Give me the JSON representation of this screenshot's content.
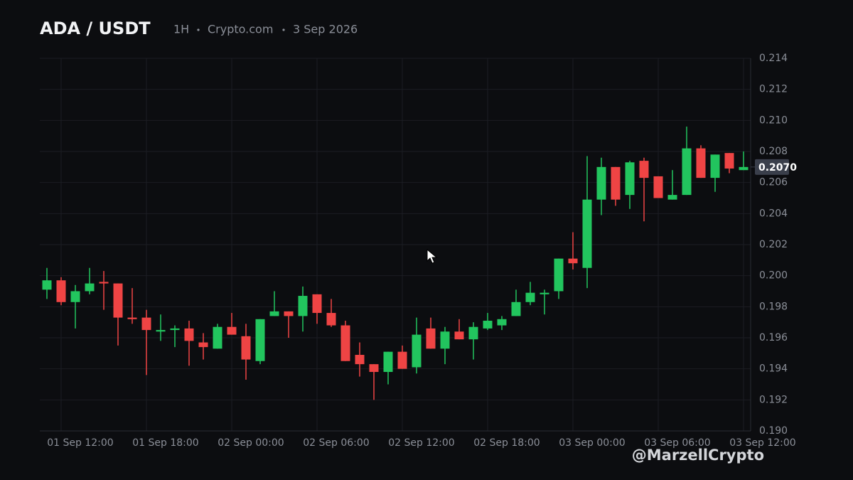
{
  "chart_data": {
    "type": "candlestick",
    "title": "ADA / USDT",
    "subtitle": [
      "1H",
      "Crypto.com",
      "3 Sep 2026"
    ],
    "watermark": "@MarzellCrypto",
    "categories": [
      null,
      "01 Sep 12:00",
      null,
      null,
      null,
      null,
      null,
      "01 Sep 18:00",
      null,
      null,
      null,
      null,
      null,
      "02 Sep 00:00",
      null,
      null,
      null,
      null,
      null,
      "02 Sep 06:00",
      null,
      null,
      null,
      null,
      null,
      "02 Sep 12:00",
      null,
      null,
      null,
      null,
      null,
      "02 Sep 18:00",
      null,
      null,
      null,
      null,
      null,
      "03 Sep 00:00",
      null,
      null,
      null,
      null,
      null,
      "03 Sep 06:00",
      null,
      null,
      null,
      null,
      null,
      "03 Sep 12:00"
    ],
    "open": [
      0.1991,
      0.1997,
      0.1983,
      0.199,
      0.1996,
      0.1995,
      0.1973,
      0.1973,
      0.1964,
      0.1965,
      0.1966,
      0.1957,
      0.1953,
      0.1967,
      0.1961,
      0.1945,
      0.1974,
      0.1977,
      0.1974,
      0.1988,
      0.1976,
      0.1968,
      0.1949,
      0.1943,
      0.1938,
      0.1951,
      0.1941,
      0.1966,
      0.1953,
      0.1964,
      0.1959,
      0.1966,
      0.1968,
      0.1974,
      0.1983,
      0.1988,
      0.199,
      0.2011,
      0.2005,
      0.2049,
      0.207,
      0.2052,
      0.2074,
      0.2064,
      0.2049,
      0.2052,
      0.2082,
      0.2063,
      0.2079,
      0.2068
    ],
    "high": [
      0.2005,
      0.1999,
      0.1994,
      0.2005,
      0.2003,
      0.1995,
      0.1992,
      0.1978,
      0.1975,
      0.1968,
      0.1971,
      0.1963,
      0.1969,
      0.1976,
      0.1969,
      0.1972,
      0.199,
      0.1977,
      0.1993,
      0.1988,
      0.1985,
      0.1971,
      0.1957,
      0.1943,
      0.1951,
      0.1955,
      0.1973,
      0.1973,
      0.1967,
      0.1972,
      0.197,
      0.1976,
      0.1974,
      0.1991,
      0.1996,
      0.1991,
      0.2011,
      0.2028,
      0.2077,
      0.2076,
      0.207,
      0.2074,
      0.2076,
      0.2064,
      0.2068,
      0.2096,
      0.2084,
      0.2078,
      0.2079,
      0.208
    ],
    "low": [
      0.1985,
      0.1981,
      0.1966,
      0.1988,
      0.1978,
      0.1955,
      0.1969,
      0.1936,
      0.1958,
      0.1954,
      0.1942,
      0.1946,
      0.1953,
      0.1962,
      0.1933,
      0.1943,
      0.1974,
      0.196,
      0.1964,
      0.1969,
      0.1967,
      0.1945,
      0.1935,
      0.192,
      0.193,
      0.194,
      0.1937,
      0.1953,
      0.1943,
      0.1959,
      0.1946,
      0.1965,
      0.1965,
      0.1974,
      0.1981,
      0.1975,
      0.1985,
      0.2004,
      0.1992,
      0.2039,
      0.2045,
      0.2043,
      0.2035,
      0.205,
      0.2049,
      0.2052,
      0.2063,
      0.2054,
      0.2066,
      0.2068
    ],
    "close": [
      0.1997,
      0.1983,
      0.199,
      0.1995,
      0.1995,
      0.1973,
      0.1972,
      0.1965,
      0.1965,
      0.1966,
      0.1958,
      0.1954,
      0.1967,
      0.1962,
      0.1946,
      0.1972,
      0.1977,
      0.1974,
      0.1987,
      0.1976,
      0.1968,
      0.1945,
      0.1943,
      0.1938,
      0.1951,
      0.194,
      0.1962,
      0.1953,
      0.1964,
      0.1959,
      0.1967,
      0.1971,
      0.1972,
      0.1983,
      0.1989,
      0.1989,
      0.2011,
      0.2008,
      0.2049,
      0.207,
      0.2049,
      0.2073,
      0.2063,
      0.205,
      0.2052,
      0.2082,
      0.2063,
      0.2078,
      0.2069,
      0.207
    ],
    "up_color": "#22c55e",
    "down_color": "#ef4444",
    "ylim": [
      0.19,
      0.214
    ],
    "yticks": [
      {
        "value": 0.19,
        "label": "0.190"
      },
      {
        "value": 0.192,
        "label": "0.192"
      },
      {
        "value": 0.194,
        "label": "0.194"
      },
      {
        "value": 0.196,
        "label": "0.196"
      },
      {
        "value": 0.198,
        "label": "0.198"
      },
      {
        "value": 0.2,
        "label": "0.200"
      },
      {
        "value": 0.202,
        "label": "0.202"
      },
      {
        "value": 0.204,
        "label": "0.204"
      },
      {
        "value": 0.206,
        "label": "0.206"
      },
      {
        "value": 0.208,
        "label": "0.208"
      },
      {
        "value": 0.21,
        "label": "0.210"
      },
      {
        "value": 0.212,
        "label": "0.212"
      },
      {
        "value": 0.214,
        "label": "0.214"
      }
    ],
    "last_price": {
      "value": 0.207,
      "label": "0.2070"
    },
    "grid": true
  }
}
